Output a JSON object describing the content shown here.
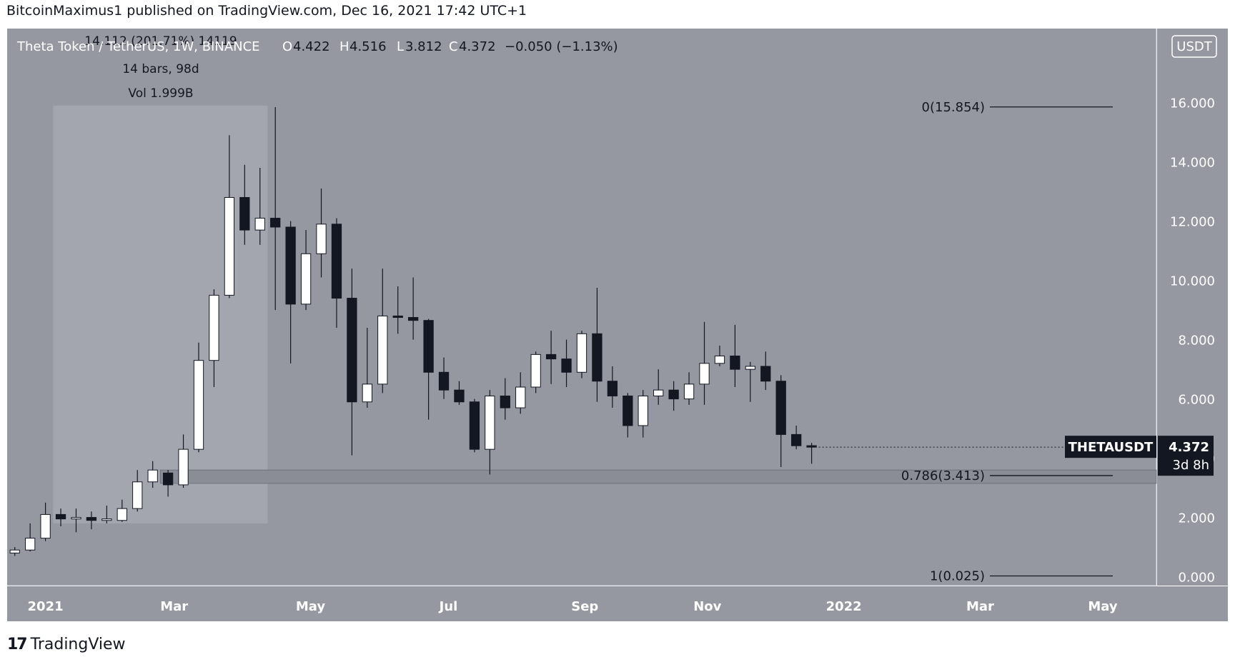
{
  "header": {
    "publisher_line": "BitcoinMaximus1 published on TradingView.com, Dec 16, 2021 17:42 UTC+1"
  },
  "legend": {
    "symbol": "Theta Token / TetherUS, 1W, BINANCE",
    "open_label": "O",
    "open": "4.422",
    "high_label": "H",
    "high": "4.516",
    "low_label": "L",
    "low": "3.812",
    "close_label": "C",
    "close": "4.372",
    "change": "−0.050 (−1.13%)"
  },
  "measure": {
    "line1": "14.112 (201.71%) 14119",
    "line2": "14 bars, 98d",
    "line3": "Vol 1.999B"
  },
  "currency_badge": "USDT",
  "price_label": {
    "symbol": "THETAUSDT",
    "price": "4.372",
    "countdown": "3d 8h"
  },
  "fib_levels": [
    {
      "label": "0(15.854)",
      "value": 15.854
    },
    {
      "label": "0.786(3.413)",
      "value": 3.413
    },
    {
      "label": "1(0.025)",
      "value": 0.025
    }
  ],
  "support_zone": {
    "low": 3.15,
    "high": 3.6
  },
  "footer": {
    "brand": "TradingView",
    "mark": "17"
  },
  "colors": {
    "background": "#9598a1",
    "up_candle": "#ffffff",
    "down_candle": "#131722",
    "measure_box": "#a8abb3",
    "zone": "#8a8d96",
    "label_bg": "#131722"
  },
  "chart_data": {
    "type": "candlestick",
    "title": "Theta Token / TetherUS, 1W, BINANCE",
    "interval": "1W",
    "ylabel": "USDT",
    "ylim": [
      -0.3,
      18.5
    ],
    "y_ticks": [
      "0.000",
      "2.000",
      "4.000",
      "6.000",
      "8.000",
      "10.000",
      "12.000",
      "14.000",
      "16.000"
    ],
    "x_ticks": [
      "2021",
      "Mar",
      "May",
      "Jul",
      "Sep",
      "Nov",
      "2022",
      "Mar",
      "May"
    ],
    "x_tick_weeks": [
      2.5,
      10.9,
      19.8,
      28.8,
      37.7,
      45.7,
      54.6,
      63.5,
      71.5
    ],
    "x_range": [
      0,
      75
    ],
    "measure_range": {
      "start_week": 3.0,
      "end_week": 17.0,
      "low": 1.8,
      "high": 15.9
    },
    "candles": [
      {
        "o": 0.8,
        "h": 1.0,
        "l": 0.7,
        "c": 0.9
      },
      {
        "o": 0.9,
        "h": 1.8,
        "l": 0.85,
        "c": 1.3
      },
      {
        "o": 1.3,
        "h": 2.5,
        "l": 1.2,
        "c": 2.1
      },
      {
        "o": 2.1,
        "h": 2.3,
        "l": 1.7,
        "c": 1.95
      },
      {
        "o": 1.95,
        "h": 2.3,
        "l": 1.5,
        "c": 2.0
      },
      {
        "o": 2.0,
        "h": 2.2,
        "l": 1.6,
        "c": 1.9
      },
      {
        "o": 1.9,
        "h": 2.4,
        "l": 1.8,
        "c": 1.95
      },
      {
        "o": 1.9,
        "h": 2.6,
        "l": 1.85,
        "c": 2.3
      },
      {
        "o": 2.3,
        "h": 3.6,
        "l": 2.2,
        "c": 3.2
      },
      {
        "o": 3.2,
        "h": 3.9,
        "l": 3.0,
        "c": 3.6
      },
      {
        "o": 3.5,
        "h": 3.6,
        "l": 2.7,
        "c": 3.1
      },
      {
        "o": 3.1,
        "h": 4.8,
        "l": 3.0,
        "c": 4.3
      },
      {
        "o": 4.3,
        "h": 7.9,
        "l": 4.2,
        "c": 7.3
      },
      {
        "o": 7.3,
        "h": 9.7,
        "l": 6.4,
        "c": 9.5
      },
      {
        "o": 9.5,
        "h": 14.9,
        "l": 9.4,
        "c": 12.8
      },
      {
        "o": 12.8,
        "h": 13.9,
        "l": 11.2,
        "c": 11.7
      },
      {
        "o": 11.7,
        "h": 13.8,
        "l": 11.2,
        "c": 12.1
      },
      {
        "o": 12.1,
        "h": 15.85,
        "l": 9.0,
        "c": 11.8
      },
      {
        "o": 11.8,
        "h": 12.0,
        "l": 7.2,
        "c": 9.2
      },
      {
        "o": 9.2,
        "h": 11.7,
        "l": 9.0,
        "c": 10.9
      },
      {
        "o": 10.9,
        "h": 13.1,
        "l": 10.1,
        "c": 11.9
      },
      {
        "o": 11.9,
        "h": 12.1,
        "l": 8.4,
        "c": 9.4
      },
      {
        "o": 9.4,
        "h": 10.4,
        "l": 4.1,
        "c": 5.9
      },
      {
        "o": 5.9,
        "h": 8.4,
        "l": 5.7,
        "c": 6.5
      },
      {
        "o": 6.5,
        "h": 10.4,
        "l": 6.2,
        "c": 8.8
      },
      {
        "o": 8.8,
        "h": 9.8,
        "l": 8.2,
        "c": 8.75
      },
      {
        "o": 8.75,
        "h": 10.1,
        "l": 8.0,
        "c": 8.65
      },
      {
        "o": 8.65,
        "h": 8.7,
        "l": 5.3,
        "c": 6.9
      },
      {
        "o": 6.9,
        "h": 7.4,
        "l": 6.0,
        "c": 6.3
      },
      {
        "o": 6.3,
        "h": 6.6,
        "l": 5.8,
        "c": 5.9
      },
      {
        "o": 5.9,
        "h": 6.0,
        "l": 4.2,
        "c": 4.3
      },
      {
        "o": 4.3,
        "h": 6.3,
        "l": 3.45,
        "c": 6.1
      },
      {
        "o": 6.1,
        "h": 6.7,
        "l": 5.3,
        "c": 5.7
      },
      {
        "o": 5.7,
        "h": 6.9,
        "l": 5.5,
        "c": 6.4
      },
      {
        "o": 6.4,
        "h": 7.6,
        "l": 6.2,
        "c": 7.5
      },
      {
        "o": 7.5,
        "h": 8.3,
        "l": 6.5,
        "c": 7.35
      },
      {
        "o": 7.35,
        "h": 8.0,
        "l": 6.4,
        "c": 6.9
      },
      {
        "o": 6.9,
        "h": 8.3,
        "l": 6.7,
        "c": 8.2
      },
      {
        "o": 8.2,
        "h": 9.75,
        "l": 5.9,
        "c": 6.6
      },
      {
        "o": 6.6,
        "h": 7.1,
        "l": 5.7,
        "c": 6.1
      },
      {
        "o": 6.1,
        "h": 6.2,
        "l": 4.7,
        "c": 5.1
      },
      {
        "o": 5.1,
        "h": 6.3,
        "l": 4.7,
        "c": 6.1
      },
      {
        "o": 6.1,
        "h": 7.0,
        "l": 5.8,
        "c": 6.3
      },
      {
        "o": 6.3,
        "h": 6.6,
        "l": 5.6,
        "c": 6.0
      },
      {
        "o": 6.0,
        "h": 6.9,
        "l": 5.8,
        "c": 6.5
      },
      {
        "o": 6.5,
        "h": 8.6,
        "l": 5.8,
        "c": 7.2
      },
      {
        "o": 7.2,
        "h": 7.8,
        "l": 7.1,
        "c": 7.45
      },
      {
        "o": 7.45,
        "h": 8.5,
        "l": 6.4,
        "c": 7.0
      },
      {
        "o": 7.0,
        "h": 7.25,
        "l": 5.9,
        "c": 7.1
      },
      {
        "o": 7.1,
        "h": 7.6,
        "l": 6.3,
        "c": 6.6
      },
      {
        "o": 6.6,
        "h": 6.8,
        "l": 3.7,
        "c": 4.8
      },
      {
        "o": 4.8,
        "h": 5.1,
        "l": 4.3,
        "c": 4.42
      },
      {
        "o": 4.422,
        "h": 4.516,
        "l": 3.812,
        "c": 4.372
      }
    ]
  }
}
